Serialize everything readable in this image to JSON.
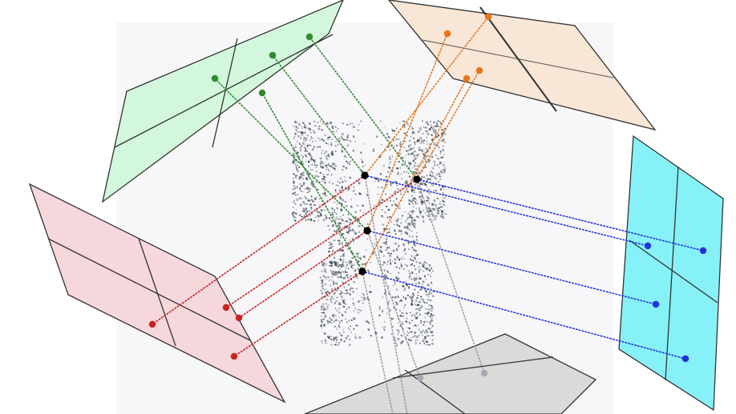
{
  "diagram": {
    "title": "",
    "colors": {
      "background_box": "#f7f7f9",
      "plane_stroke": "#333333",
      "point_cloud": "#5f6a73",
      "point_cloud_dark": "#2e3a44",
      "core_point": "#000000"
    },
    "planes": [
      {
        "name": "green-view-plane",
        "fill": "#d3f7dc",
        "ray_color": "#2e8b2e",
        "point_color": "#2e8b2e"
      },
      {
        "name": "orange-view-plane",
        "fill": "#f8e6d6",
        "ray_color": "#e8751a",
        "point_color": "#e8751a"
      },
      {
        "name": "pink-view-plane",
        "fill": "#f6d8dc",
        "ray_color": "#cc2222",
        "point_color": "#cc2222"
      },
      {
        "name": "cyan-view-plane",
        "fill": "#86f2f8",
        "ray_color": "#2233dd",
        "point_color": "#2233dd"
      },
      {
        "name": "gray-view-plane",
        "fill": "#dcdad9",
        "ray_color": "#8a8a8a",
        "point_color": "#a8a8b4"
      }
    ]
  }
}
